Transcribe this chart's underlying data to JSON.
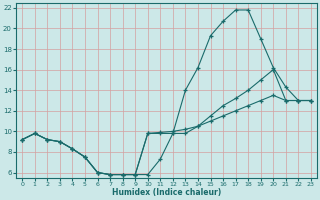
{
  "xlabel": "Humidex (Indice chaleur)",
  "bg_color": "#cce8e8",
  "grid_color": "#d4a0a0",
  "line_color": "#1a6b6b",
  "xlim": [
    -0.5,
    23.5
  ],
  "ylim": [
    5.5,
    22.5
  ],
  "xticks": [
    0,
    1,
    2,
    3,
    4,
    5,
    6,
    7,
    8,
    9,
    10,
    11,
    12,
    13,
    14,
    15,
    16,
    17,
    18,
    19,
    20,
    21,
    22,
    23
  ],
  "yticks": [
    6,
    8,
    10,
    12,
    14,
    16,
    18,
    20,
    22
  ],
  "line1_y": [
    9.2,
    9.8,
    9.2,
    9.0,
    8.3,
    7.5,
    6.0,
    5.8,
    5.8,
    5.8,
    5.8,
    7.3,
    9.8,
    14.0,
    16.2,
    19.3,
    20.7,
    21.8,
    21.8,
    19.0,
    16.2,
    14.3,
    13.0,
    13.0
  ],
  "line2_y": [
    9.2,
    9.8,
    9.2,
    9.0,
    8.3,
    7.5,
    6.0,
    5.8,
    5.8,
    5.8,
    9.8,
    9.8,
    9.8,
    9.8,
    10.5,
    11.5,
    12.5,
    13.2,
    14.0,
    15.0,
    16.0,
    13.0,
    13.0,
    13.0
  ],
  "line3_y": [
    9.2,
    9.8,
    9.2,
    9.0,
    8.3,
    7.5,
    6.0,
    5.8,
    5.8,
    5.8,
    9.8,
    9.9,
    10.0,
    10.2,
    10.5,
    11.0,
    11.5,
    12.0,
    12.5,
    13.0,
    13.5,
    13.0,
    13.0,
    13.0
  ]
}
